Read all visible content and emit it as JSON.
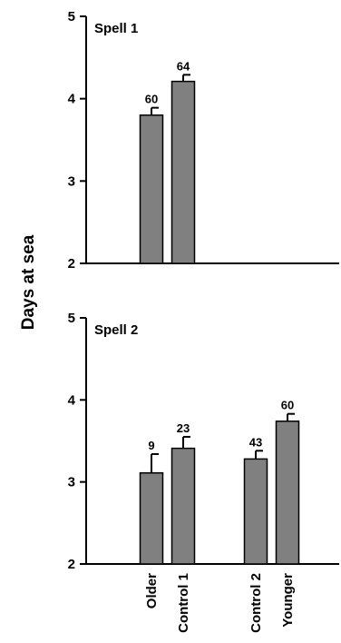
{
  "chart_data": {
    "type": "bar",
    "ylabel": "Days at sea",
    "ylim": [
      2,
      5
    ],
    "yticks": [
      "2",
      "3",
      "4",
      "5"
    ],
    "categories": [
      "Older",
      "Control 1",
      "Control 2",
      "Younger"
    ],
    "bar_color": "#808080",
    "panels": [
      {
        "title": "Spell 1",
        "values": [
          3.8,
          4.21,
          null,
          null
        ],
        "errors": [
          0.09,
          0.08,
          null,
          null
        ],
        "n_labels": [
          "60",
          "64",
          "",
          ""
        ]
      },
      {
        "title": "Spell 2",
        "values": [
          3.11,
          3.41,
          3.28,
          3.74
        ],
        "errors": [
          0.23,
          0.14,
          0.1,
          0.09
        ],
        "n_labels": [
          "9",
          "23",
          "43",
          "60"
        ]
      }
    ]
  }
}
